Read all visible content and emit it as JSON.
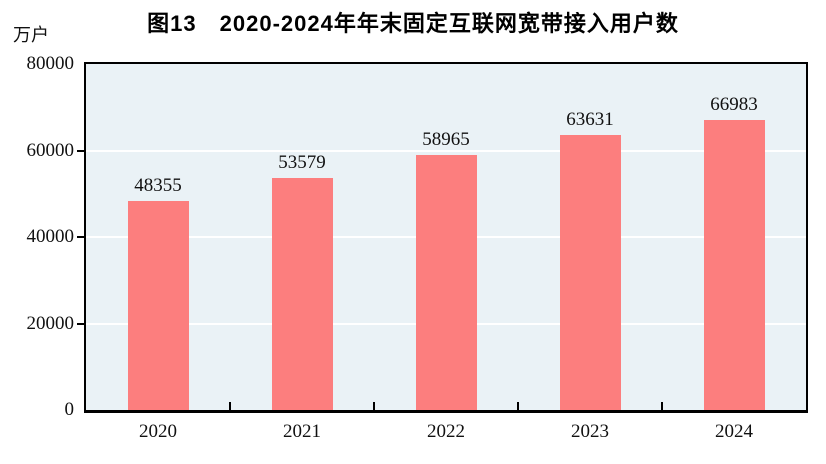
{
  "title": "图13　2020-2024年年末固定互联网宽带接入用户数",
  "unit_label": "万户",
  "colors": {
    "bar": "#fc7e7e",
    "plot_background": "#eaf2f6",
    "gridline": "#ffffff",
    "axis": "#000000"
  },
  "chart_data": {
    "type": "bar",
    "title": "图13　2020-2024年年末固定互联网宽带接入用户数",
    "xlabel": "",
    "ylabel": "万户",
    "categories": [
      "2020",
      "2021",
      "2022",
      "2023",
      "2024"
    ],
    "values": [
      48355,
      53579,
      58965,
      63631,
      66983
    ],
    "value_labels": [
      "48355",
      "53579",
      "58965",
      "63631",
      "66983"
    ],
    "ylim": [
      0,
      80000
    ],
    "yticks": [
      0,
      20000,
      40000,
      60000,
      80000
    ],
    "ytick_labels": [
      "0",
      "20000",
      "40000",
      "60000",
      "80000"
    ],
    "grid": true,
    "legend": "none"
  }
}
